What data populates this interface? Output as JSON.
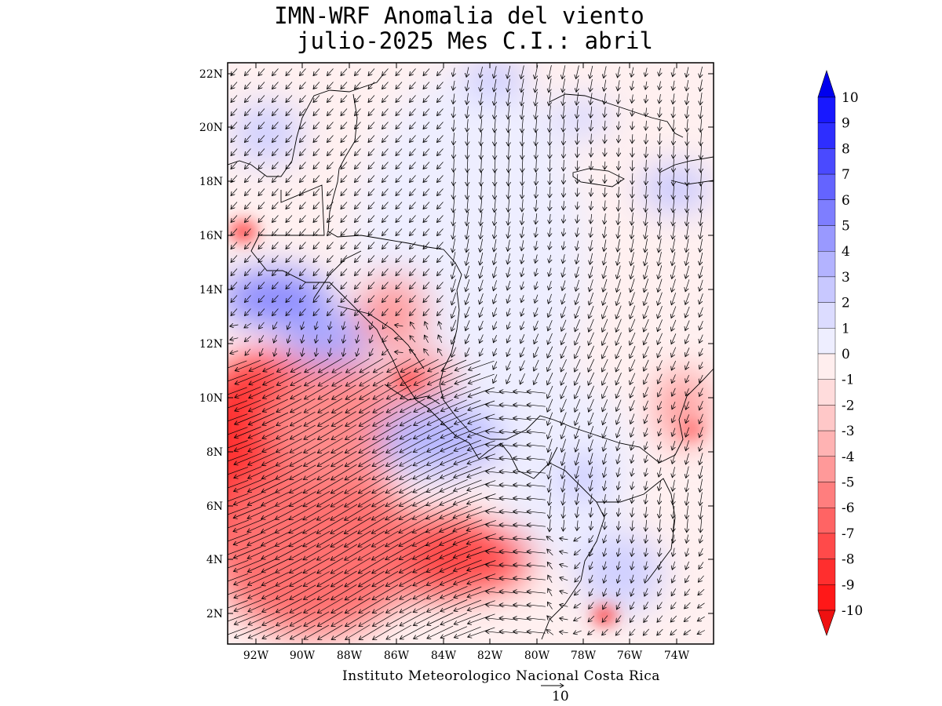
{
  "header": {
    "title_line1": "IMN-WRF Anomalia del viento",
    "title_line2": "julio-2025 Mes C.I.: abril"
  },
  "map": {
    "lon_range": [
      -93.5,
      -72.5
    ],
    "lat_range": [
      1,
      22.5
    ],
    "lon_ticks": [
      "92W",
      "90W",
      "88W",
      "86W",
      "84W",
      "82W",
      "80W",
      "78W",
      "76W",
      "74W"
    ],
    "lat_ticks": [
      "2N",
      "4N",
      "6N",
      "8N",
      "10N",
      "12N",
      "14N",
      "16N",
      "18N",
      "20N",
      "22N"
    ]
  },
  "colorbar": {
    "labels": [
      "10",
      "9",
      "8",
      "7",
      "6",
      "5",
      "4",
      "3",
      "2",
      "1",
      "0",
      "-1",
      "-2",
      "-3",
      "-4",
      "-5",
      "-6",
      "-7",
      "-8",
      "-9",
      "-10"
    ],
    "colors": [
      "#1818ff",
      "#2e2eff",
      "#4a4aff",
      "#6464ff",
      "#7e7eff",
      "#9999ff",
      "#b3b3ff",
      "#c8c8ff",
      "#dcdcff",
      "#eeeeff",
      "#ffeeee",
      "#ffdcdc",
      "#ffc8c8",
      "#ffb3b3",
      "#ff9999",
      "#ff7e7e",
      "#ff6464",
      "#ff4a4a",
      "#ff2e2e",
      "#ff1818"
    ],
    "top_arrow_color": "#0000ee",
    "bottom_arrow_color": "#ee1111"
  },
  "footer": {
    "credit": "Instituto Meteorologico Nacional Costa Rica",
    "reference_vector": "10"
  }
}
